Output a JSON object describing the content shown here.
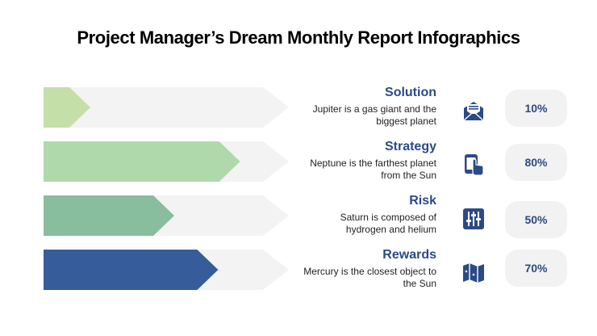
{
  "title": "Project Manager’s Dream Monthly Report Infographics",
  "colors": {
    "track": "#f3f3f3",
    "accent": "#2b4a86",
    "text": "#222222"
  },
  "items": [
    {
      "label": "Solution",
      "description": "Jupiter is a gas giant and the biggest planet",
      "value": "10%",
      "percent": 10,
      "color": "#c5dfa8",
      "icon": "envelope-icon"
    },
    {
      "label": "Strategy",
      "description": "Neptune is the farthest planet from the Sun",
      "value": "80%",
      "percent": 80,
      "color": "#b0d9ab",
      "icon": "phone-tap-icon"
    },
    {
      "label": "Risk",
      "description": "Saturn is composed of hydrogen and helium",
      "value": "50%",
      "percent": 50,
      "color": "#88bd9d",
      "icon": "equalizer-icon"
    },
    {
      "label": "Rewards",
      "description": "Mercury is the closest object to the Sun",
      "value": "70%",
      "percent": 70,
      "color": "#365c9a",
      "icon": "map-icon"
    }
  ]
}
